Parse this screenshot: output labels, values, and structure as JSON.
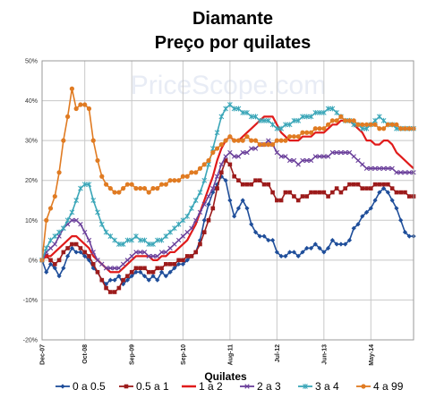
{
  "chart_data": {
    "type": "line",
    "title": "Diamante",
    "subtitle": "Preço por quilates",
    "watermark": "PriceScope.com",
    "xlabel": "Quilates",
    "ylabel": "",
    "ylim": [
      -20,
      50
    ],
    "yticks": [
      "-20%",
      "-10%",
      "0%",
      "10%",
      "20%",
      "30%",
      "40%",
      "50%"
    ],
    "yvalues": [
      -20,
      -10,
      0,
      10,
      20,
      30,
      40,
      50
    ],
    "xlim": [
      0,
      87
    ],
    "xticks": [
      {
        "label": "Dec-07",
        "x": 0
      },
      {
        "label": "Oct-08",
        "x": 10
      },
      {
        "label": "Sep-09",
        "x": 21
      },
      {
        "label": "Sep-10",
        "x": 33
      },
      {
        "label": "Aug-11",
        "x": 44
      },
      {
        "label": "Jul-12",
        "x": 55
      },
      {
        "label": "Jun-13",
        "x": 66
      },
      {
        "label": "May-14",
        "x": 77
      }
    ],
    "grid": true,
    "legend": "bottom",
    "series": [
      {
        "name": "0 a 0.5",
        "color": "#1f4e9a",
        "marker": "diamond",
        "values": [
          0,
          -3,
          -1,
          -2,
          -4,
          -2,
          1,
          3,
          2,
          2,
          1,
          0,
          -2,
          -3,
          -5,
          -6,
          -5,
          -5,
          -4,
          -6,
          -5,
          -4,
          -3,
          -3,
          -4,
          -5,
          -4,
          -5,
          -3,
          -4,
          -3,
          -2,
          -1,
          -1,
          0,
          1,
          2,
          5,
          10,
          14,
          17,
          19,
          21,
          20,
          15,
          11,
          13,
          15,
          13,
          9,
          7,
          6,
          6,
          5,
          5,
          2,
          1,
          1,
          2,
          2,
          1,
          2,
          3,
          3,
          4,
          3,
          2,
          3,
          5,
          4,
          4,
          4,
          5,
          8,
          9,
          11,
          12,
          13,
          15,
          17,
          18,
          17,
          15,
          13,
          10,
          7,
          6,
          6
        ]
      },
      {
        "name": "0.5 a 1",
        "color": "#9c1b1b",
        "marker": "square",
        "values": [
          0,
          1,
          0,
          -1,
          0,
          2,
          3,
          4,
          4,
          3,
          2,
          1,
          -1,
          -3,
          -5,
          -7,
          -8,
          -8,
          -7,
          -5,
          -4,
          -3,
          -2,
          -2,
          -2,
          -3,
          -3,
          -2,
          -2,
          -1,
          -1,
          -1,
          0,
          0,
          1,
          1,
          2,
          4,
          7,
          10,
          13,
          18,
          22,
          25,
          24,
          21,
          20,
          19,
          19,
          19,
          20,
          20,
          19,
          19,
          17,
          15,
          15,
          17,
          17,
          16,
          15,
          16,
          16,
          17,
          17,
          17,
          17,
          16,
          17,
          18,
          17,
          18,
          19,
          19,
          19,
          18,
          18,
          18,
          19,
          19,
          19,
          19,
          18,
          17,
          17,
          17,
          16,
          16
        ]
      },
      {
        "name": "1 a 2",
        "color": "#e01b1b",
        "marker": "none",
        "values": [
          0,
          1,
          1,
          2,
          3,
          4,
          5,
          6,
          6,
          5,
          4,
          3,
          1,
          0,
          -1,
          -2,
          -3,
          -3,
          -3,
          -2,
          -1,
          0,
          1,
          1,
          1,
          1,
          0,
          0,
          1,
          1,
          2,
          2,
          3,
          4,
          5,
          7,
          9,
          12,
          15,
          18,
          21,
          25,
          28,
          30,
          31,
          30,
          30,
          31,
          32,
          33,
          34,
          35,
          36,
          36,
          36,
          34,
          32,
          31,
          30,
          30,
          30,
          31,
          31,
          31,
          32,
          32,
          32,
          33,
          34,
          34,
          35,
          35,
          35,
          34,
          33,
          32,
          30,
          30,
          29,
          29,
          30,
          30,
          29,
          27,
          26,
          25,
          24,
          23
        ]
      },
      {
        "name": "2 a 3",
        "color": "#6a3f9a",
        "marker": "x",
        "values": [
          0,
          2,
          3,
          4,
          6,
          8,
          9,
          10,
          10,
          9,
          7,
          5,
          2,
          0,
          -1,
          -2,
          -2,
          -2,
          -2,
          -1,
          0,
          1,
          2,
          2,
          2,
          1,
          1,
          1,
          2,
          2,
          3,
          4,
          5,
          6,
          7,
          8,
          10,
          12,
          14,
          16,
          18,
          21,
          24,
          26,
          27,
          26,
          26,
          27,
          27,
          28,
          28,
          29,
          29,
          30,
          29,
          27,
          26,
          26,
          25,
          25,
          24,
          25,
          25,
          25,
          26,
          26,
          26,
          26,
          27,
          27,
          27,
          27,
          27,
          26,
          25,
          24,
          23,
          23,
          23,
          23,
          23,
          23,
          23,
          22,
          22,
          22,
          22,
          22
        ]
      },
      {
        "name": "3 a 4",
        "color": "#3aa6b8",
        "marker": "asterisk",
        "values": [
          0,
          3,
          5,
          6,
          7,
          8,
          10,
          12,
          15,
          18,
          19,
          19,
          15,
          12,
          9,
          7,
          6,
          5,
          4,
          4,
          5,
          5,
          6,
          5,
          5,
          4,
          4,
          5,
          5,
          6,
          7,
          8,
          9,
          10,
          11,
          13,
          15,
          17,
          20,
          24,
          28,
          32,
          36,
          38,
          39,
          38,
          38,
          37,
          37,
          36,
          36,
          35,
          35,
          35,
          34,
          33,
          33,
          34,
          34,
          35,
          35,
          36,
          36,
          36,
          37,
          37,
          37,
          38,
          38,
          37,
          36,
          35,
          35,
          34,
          34,
          33,
          33,
          34,
          35,
          36,
          35,
          34,
          34,
          33,
          33,
          33,
          33,
          33
        ]
      },
      {
        "name": "4 a 99",
        "color": "#e07b22",
        "marker": "circle",
        "values": [
          0,
          10,
          13,
          16,
          22,
          30,
          36,
          43,
          38,
          39,
          39,
          38,
          30,
          25,
          21,
          19,
          18,
          17,
          17,
          18,
          19,
          19,
          18,
          18,
          18,
          17,
          18,
          18,
          19,
          19,
          20,
          20,
          20,
          21,
          21,
          22,
          22,
          23,
          24,
          25,
          27,
          28,
          29,
          30,
          31,
          30,
          30,
          30,
          31,
          30,
          30,
          29,
          29,
          29,
          29,
          30,
          30,
          30,
          31,
          31,
          31,
          32,
          32,
          32,
          33,
          33,
          33,
          34,
          35,
          35,
          36,
          35,
          35,
          35,
          34,
          34,
          34,
          34,
          34,
          33,
          33,
          34,
          34,
          34,
          33,
          33,
          33,
          33
        ]
      }
    ]
  }
}
